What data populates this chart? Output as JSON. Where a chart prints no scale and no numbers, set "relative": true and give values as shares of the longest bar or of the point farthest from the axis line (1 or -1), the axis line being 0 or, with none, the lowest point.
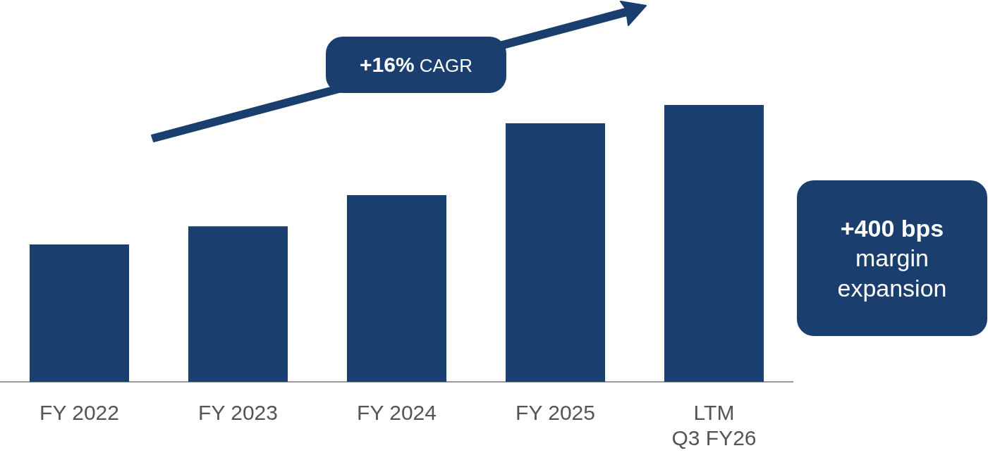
{
  "chart_data": {
    "type": "bar",
    "relative": true,
    "categories": [
      "FY 2022",
      "FY 2023",
      "FY 2024",
      "FY 2025",
      "LTM Q3 FY26"
    ],
    "values": [
      0.496,
      0.562,
      0.674,
      0.934,
      1
    ],
    "color": "#1a4070",
    "grid": false,
    "legend": false,
    "annotations": [
      "+16% CAGR",
      "+400 bps margin expansion"
    ]
  }
}
